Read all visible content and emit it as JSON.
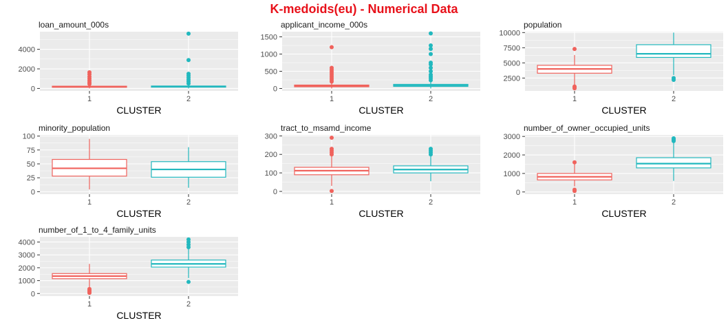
{
  "title": "K-medoids(eu) - Numerical Data",
  "colors": {
    "cluster1": "#f0625c",
    "cluster2": "#22b8be",
    "panel_bg": "#ebebeb",
    "grid": "#ffffff",
    "title": "#e8111a"
  },
  "chart_data": [
    {
      "type": "boxplot",
      "title": "loan_amount_000s",
      "xlabel": "CLUSTER",
      "ylabel": "",
      "categories": [
        "1",
        "2"
      ],
      "ylim": [
        -250,
        5800
      ],
      "yticks": [
        0,
        2000,
        4000
      ],
      "series": [
        {
          "category": "1",
          "whisker_low": 1,
          "q1": 120,
          "median": 170,
          "q3": 230,
          "whisker_high": 400,
          "outliers": [
            450,
            600,
            800,
            1000,
            1200,
            1450,
            1650
          ]
        },
        {
          "category": "2",
          "whisker_low": 1,
          "q1": 130,
          "median": 185,
          "q3": 250,
          "whisker_high": 420,
          "outliers": [
            500,
            700,
            900,
            1100,
            1300,
            1500,
            2900,
            5600
          ]
        }
      ]
    },
    {
      "type": "boxplot",
      "title": "applicant_income_000s",
      "xlabel": "CLUSTER",
      "ylabel": "",
      "categories": [
        "1",
        "2"
      ],
      "ylim": [
        -70,
        1650
      ],
      "yticks": [
        0,
        500,
        1000,
        1500
      ],
      "series": [
        {
          "category": "1",
          "whisker_low": 1,
          "q1": 50,
          "median": 70,
          "q3": 100,
          "whisker_high": 175,
          "outliers": [
            200,
            250,
            300,
            350,
            400,
            450,
            500,
            550,
            600,
            1200
          ]
        },
        {
          "category": "2",
          "whisker_low": 1,
          "q1": 60,
          "median": 85,
          "q3": 120,
          "whisker_high": 210,
          "outliers": [
            240,
            300,
            350,
            400,
            500,
            600,
            700,
            750,
            1000,
            1150,
            1250,
            1600
          ]
        }
      ]
    },
    {
      "type": "boxplot",
      "title": "population",
      "xlabel": "CLUSTER",
      "ylabel": "",
      "categories": [
        "1",
        "2"
      ],
      "ylim": [
        380,
        10150
      ],
      "yticks": [
        2500,
        5000,
        7500,
        10000
      ],
      "series": [
        {
          "category": "1",
          "whisker_low": 1300,
          "q1": 3300,
          "median": 4000,
          "q3": 4600,
          "whisker_high": 6300,
          "outliers": [
            7300,
            800,
            950,
            1100
          ]
        },
        {
          "category": "2",
          "whisker_low": 3000,
          "q1": 5900,
          "median": 6500,
          "q3": 8000,
          "whisker_high": 10000,
          "outliers": [
            2200,
            2500
          ]
        }
      ]
    },
    {
      "type": "boxplot",
      "title": "minority_population",
      "xlabel": "CLUSTER",
      "ylabel": "",
      "categories": [
        "1",
        "2"
      ],
      "ylim": [
        -4.5,
        102
      ],
      "yticks": [
        0,
        25,
        50,
        75,
        100
      ],
      "series": [
        {
          "category": "1",
          "whisker_low": 4,
          "q1": 28,
          "median": 42,
          "q3": 58,
          "whisker_high": 95,
          "outliers": []
        },
        {
          "category": "2",
          "whisker_low": 7,
          "q1": 26,
          "median": 40,
          "q3": 54,
          "whisker_high": 80,
          "outliers": []
        }
      ]
    },
    {
      "type": "boxplot",
      "title": "tract_to_msamd_income",
      "xlabel": "CLUSTER",
      "ylabel": "",
      "categories": [
        "1",
        "2"
      ],
      "ylim": [
        -15,
        305
      ],
      "yticks": [
        0,
        100,
        200,
        300
      ],
      "series": [
        {
          "category": "1",
          "whisker_low": 30,
          "q1": 90,
          "median": 112,
          "q3": 130,
          "whisker_high": 195,
          "outliers": [
            200,
            210,
            220,
            230,
            290,
            2
          ]
        },
        {
          "category": "2",
          "whisker_low": 55,
          "q1": 100,
          "median": 118,
          "q3": 138,
          "whisker_high": 195,
          "outliers": [
            200,
            210,
            220,
            230
          ]
        }
      ]
    },
    {
      "type": "boxplot",
      "title": "number_of_owner_occupied_units",
      "xlabel": "CLUSTER",
      "ylabel": "",
      "categories": [
        "1",
        "2"
      ],
      "ylim": [
        -120,
        3080
      ],
      "yticks": [
        0,
        1000,
        2000,
        3000
      ],
      "series": [
        {
          "category": "1",
          "whisker_low": 300,
          "q1": 650,
          "median": 820,
          "q3": 1000,
          "whisker_high": 1500,
          "outliers": [
            1600,
            50,
            120
          ]
        },
        {
          "category": "2",
          "whisker_low": 600,
          "q1": 1300,
          "median": 1530,
          "q3": 1850,
          "whisker_high": 2700,
          "outliers": [
            2750,
            2800,
            2850,
            2900
          ]
        }
      ]
    },
    {
      "type": "boxplot",
      "title": "number_of_1_to_4_family_units",
      "xlabel": "CLUSTER",
      "ylabel": "",
      "categories": [
        "1",
        "2"
      ],
      "ylim": [
        -200,
        4400
      ],
      "yticks": [
        0,
        1000,
        2000,
        3000,
        4000
      ],
      "series": [
        {
          "category": "1",
          "whisker_low": 500,
          "q1": 1150,
          "median": 1350,
          "q3": 1550,
          "whisker_high": 2300,
          "outliers": [
            50,
            150,
            250,
            350
          ]
        },
        {
          "category": "2",
          "whisker_low": 1200,
          "q1": 2050,
          "median": 2300,
          "q3": 2600,
          "whisker_high": 3500,
          "outliers": [
            3600,
            3800,
            4000,
            4200,
            900
          ]
        }
      ]
    }
  ]
}
